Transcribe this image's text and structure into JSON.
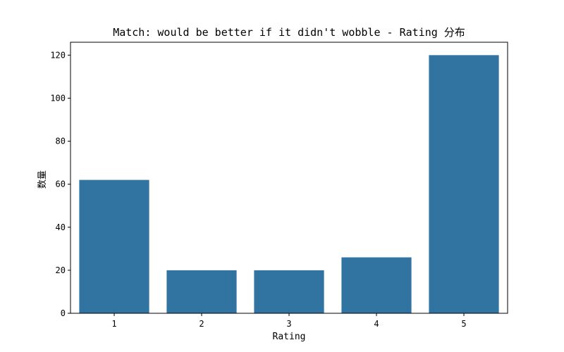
{
  "chart_data": {
    "type": "bar",
    "title": "Match: would be better if it didn't wobble - Rating 分布",
    "xlabel": "Rating",
    "ylabel": "数量",
    "categories": [
      "1",
      "2",
      "3",
      "4",
      "5"
    ],
    "values": [
      62,
      20,
      20,
      26,
      120
    ],
    "yticks": [
      0,
      20,
      40,
      60,
      80,
      100,
      120
    ],
    "ylim": [
      0,
      126
    ],
    "bar_color": "#3274a1",
    "grid": false,
    "legend": "none"
  }
}
